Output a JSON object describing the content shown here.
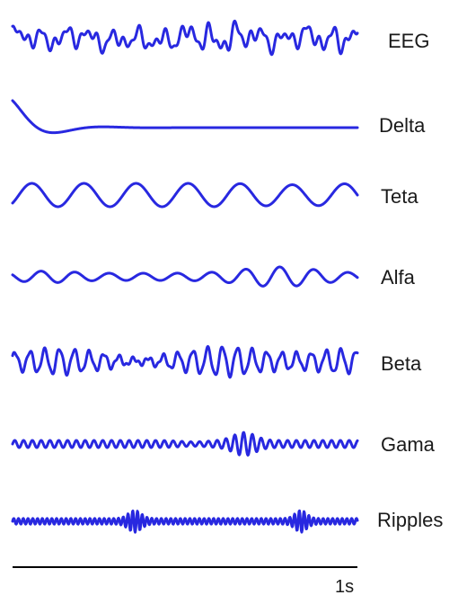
{
  "colors": {
    "trace": "#2828e0",
    "text": "#1a1a1a",
    "scale_bar": "#000000"
  },
  "traces": [
    {
      "label": "EEG"
    },
    {
      "label": "Delta"
    },
    {
      "label": "Teta"
    },
    {
      "label": "Alfa"
    },
    {
      "label": "Beta"
    },
    {
      "label": "Gama"
    },
    {
      "label": "Ripples"
    }
  ],
  "scale_bar": {
    "label": "1s"
  }
}
